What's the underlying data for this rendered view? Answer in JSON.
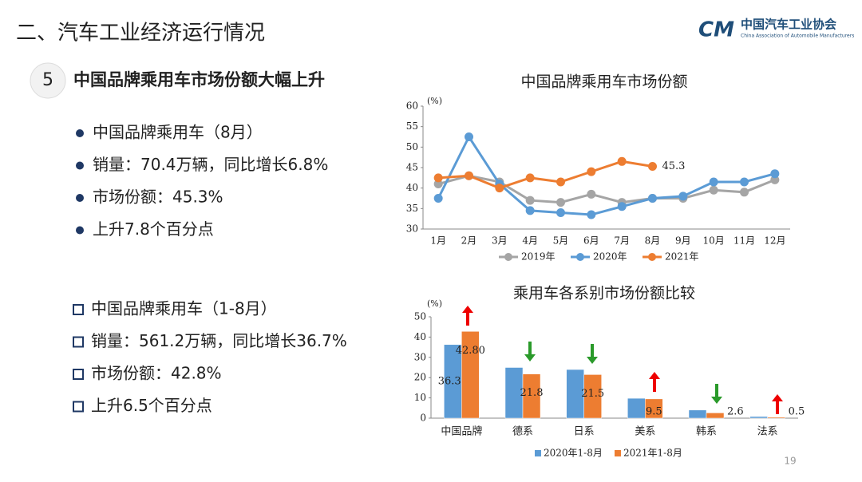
{
  "header": {
    "title": "二、汽车工业经济运行情况",
    "org_name": "中国汽车工业协会",
    "org_name_en": "China Association of Automobile Manufacturers",
    "page_number": "19"
  },
  "section": {
    "number": "5",
    "title": "中国品牌乘用车市场份额大幅上升"
  },
  "bullets_month": [
    "中国品牌乘用车（8月）",
    "销量：70.4万辆，同比增长6.8%",
    "市场份额：45.3%",
    "上升7.8个百分点"
  ],
  "bullets_ytd": [
    "中国品牌乘用车（1-8月）",
    "销量：561.2万辆，同比增长36.7%",
    "市场份额：42.8%",
    "上升6.5个百分点"
  ],
  "chart_data": [
    {
      "type": "line",
      "title": "中国品牌乘用车市场份额",
      "y_unit": "(%)",
      "categories": [
        "1月",
        "2月",
        "3月",
        "4月",
        "5月",
        "6月",
        "7月",
        "8月",
        "9月",
        "10月",
        "11月",
        "12月"
      ],
      "series": [
        {
          "name": "2019年",
          "color": "#a5a5a5",
          "values": [
            41,
            43,
            41.5,
            37,
            36.5,
            38.5,
            36.5,
            37.5,
            37.5,
            39.5,
            39,
            42
          ]
        },
        {
          "name": "2020年",
          "color": "#5b9bd5",
          "values": [
            37.5,
            52.5,
            41,
            34.5,
            34,
            33.5,
            35.5,
            37.5,
            38,
            41.5,
            41.5,
            43.5
          ]
        },
        {
          "name": "2021年",
          "color": "#ed7d31",
          "values": [
            42.5,
            43,
            40,
            42.5,
            41.5,
            44,
            46.5,
            45.3,
            null,
            null,
            null,
            null
          ],
          "value_labels": [
            null,
            null,
            null,
            null,
            null,
            null,
            null,
            "45.3",
            null,
            null,
            null,
            null
          ]
        }
      ],
      "ylim": [
        30,
        60
      ],
      "yticks": [
        30,
        35,
        40,
        45,
        50,
        55,
        60
      ]
    },
    {
      "type": "bar",
      "title": "乘用车各系别市场份额比较",
      "y_unit": "(%)",
      "categories": [
        "中国品牌",
        "德系",
        "日系",
        "美系",
        "韩系",
        "法系"
      ],
      "series": [
        {
          "name": "2020年1-8月",
          "color": "#5b9bd5",
          "values": [
            36.3,
            25,
            24,
            9.8,
            4,
            0.8
          ],
          "value_labels": [
            "36.30",
            null,
            null,
            null,
            null,
            null
          ]
        },
        {
          "name": "2021年1-8月",
          "color": "#ed7d31",
          "values": [
            42.8,
            21.8,
            21.5,
            9.5,
            2.6,
            0.5
          ],
          "value_labels": [
            "42.80",
            "21.8",
            "21.5",
            "9.5",
            "2.6",
            "0.5"
          ]
        }
      ],
      "ylim": [
        0,
        50
      ],
      "yticks": [
        0,
        10,
        20,
        30,
        40,
        50
      ]
    }
  ]
}
